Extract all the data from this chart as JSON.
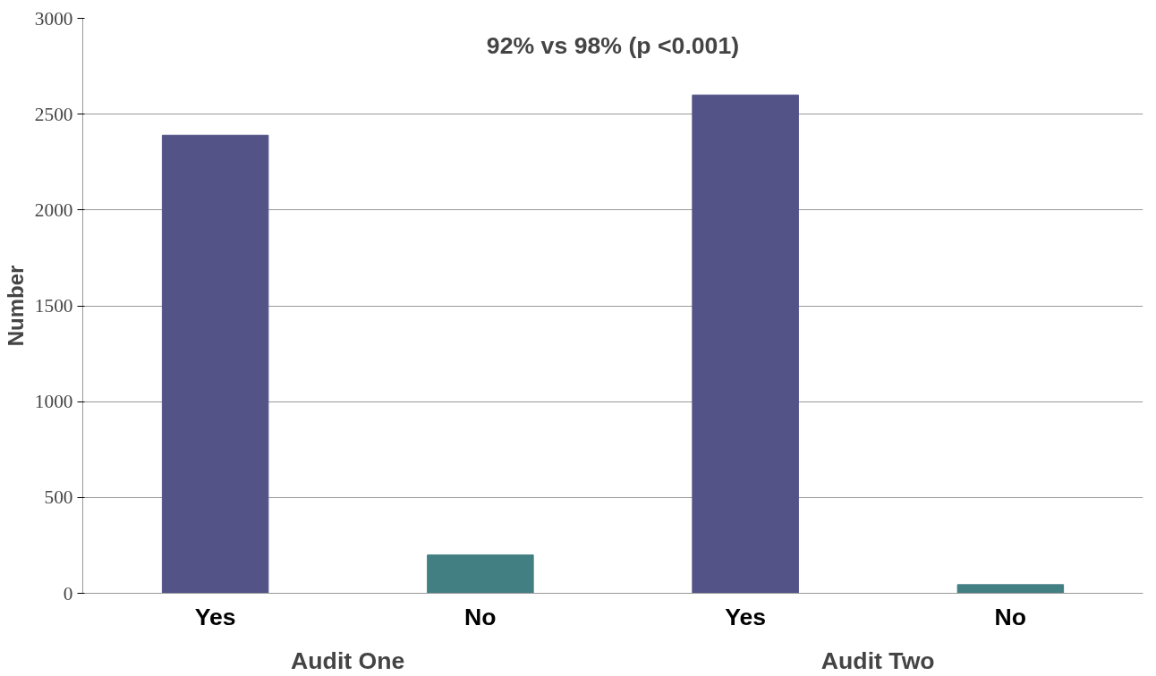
{
  "chart_data": {
    "type": "bar",
    "title": "92% vs 98% (p <0.001)",
    "ylabel": "Number",
    "categories": [
      "Yes",
      "No",
      "Yes",
      "No"
    ],
    "values": [
      2390,
      200,
      2600,
      45
    ],
    "colors": [
      "#535387",
      "#427f82",
      "#535387",
      "#427f82"
    ],
    "annotations": [
      "Audit One",
      "Audit Two"
    ],
    "ylim": [
      0,
      3000
    ],
    "yticks": [
      0,
      500,
      1000,
      1500,
      2000,
      2500,
      3000
    ],
    "grid": "y"
  }
}
